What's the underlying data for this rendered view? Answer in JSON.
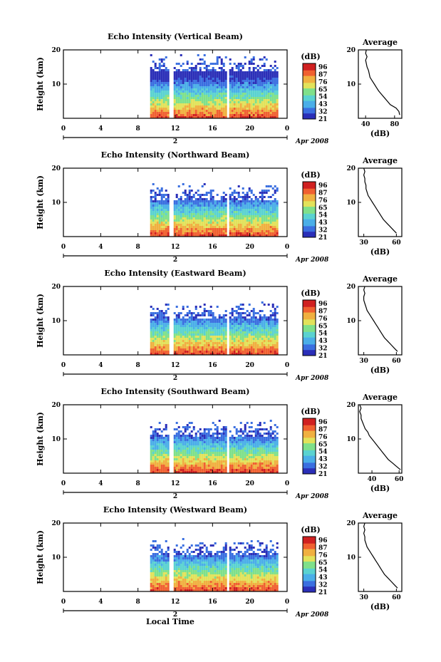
{
  "chart_data": [
    {
      "type": "heatmap",
      "title": "Echo Intensity (Vertical Beam)",
      "ylabel": "Height (km)",
      "yticks": [
        "20",
        "10"
      ],
      "ylim": [
        0,
        20
      ],
      "xticks": [
        "0",
        "4",
        "8",
        "12",
        "16",
        "20",
        "0"
      ],
      "xlim": [
        0,
        24
      ],
      "date_marker": "2",
      "date_label": "Apr 2008",
      "data_start_hour": 9.3,
      "gaps_hours": [
        11.5,
        17.6
      ],
      "colorbar_unit": "(dB)",
      "colorbar_ticks": [
        "96",
        "87",
        "76",
        "65",
        "54",
        "43",
        "32",
        "21"
      ],
      "avg_profile": {
        "title": "Average",
        "xlabel": "(dB)",
        "xticks": [
          "40",
          "80"
        ],
        "xlim": [
          30,
          90
        ],
        "yticks": [
          "20",
          "10"
        ],
        "heights_km": [
          1,
          2,
          3,
          4,
          5,
          6,
          7,
          8,
          9,
          10,
          11,
          12,
          13,
          14,
          15,
          16,
          17,
          18,
          19,
          20
        ],
        "db": [
          87,
          86,
          82,
          74,
          70,
          66,
          62,
          58,
          55,
          52,
          49,
          46,
          45,
          44,
          42,
          41,
          40,
          42,
          40,
          41
        ]
      }
    },
    {
      "type": "heatmap",
      "title": "Echo Intensity (Northward Beam)",
      "ylabel": "Height (km)",
      "yticks": [
        "20",
        "10"
      ],
      "ylim": [
        0,
        20
      ],
      "xticks": [
        "0",
        "4",
        "8",
        "12",
        "16",
        "20",
        "0"
      ],
      "xlim": [
        0,
        24
      ],
      "date_marker": "2",
      "date_label": "Apr 2008",
      "data_start_hour": 9.3,
      "gaps_hours": [
        11.5,
        17.6
      ],
      "colorbar_unit": "(dB)",
      "colorbar_ticks": [
        "96",
        "87",
        "76",
        "65",
        "54",
        "43",
        "32",
        "21"
      ],
      "avg_profile": {
        "title": "Average",
        "xlabel": "(dB)",
        "xticks": [
          "30",
          "60"
        ],
        "xlim": [
          25,
          65
        ],
        "yticks": [
          "20",
          "10"
        ],
        "heights_km": [
          1,
          2,
          3,
          4,
          5,
          6,
          7,
          8,
          9,
          10,
          11,
          12,
          13,
          14,
          15,
          16,
          17,
          18,
          19,
          20
        ],
        "db": [
          60,
          57,
          54,
          51,
          48,
          46,
          44,
          42,
          40,
          38,
          36,
          34,
          33,
          32,
          32,
          31,
          31,
          30,
          31,
          30
        ]
      }
    },
    {
      "type": "heatmap",
      "title": "Echo Intensity (Eastward Beam)",
      "ylabel": "Height (km)",
      "yticks": [
        "20",
        "10"
      ],
      "ylim": [
        0,
        20
      ],
      "xticks": [
        "0",
        "4",
        "8",
        "12",
        "16",
        "20",
        "0"
      ],
      "xlim": [
        0,
        24
      ],
      "date_marker": "2",
      "date_label": "Apr 2008",
      "data_start_hour": 9.3,
      "gaps_hours": [
        11.5,
        17.6
      ],
      "colorbar_unit": "(dB)",
      "colorbar_ticks": [
        "96",
        "87",
        "76",
        "65",
        "54",
        "43",
        "32",
        "21"
      ],
      "avg_profile": {
        "title": "Average",
        "xlabel": "(dB)",
        "xticks": [
          "30",
          "60"
        ],
        "xlim": [
          25,
          65
        ],
        "yticks": [
          "20",
          "10"
        ],
        "heights_km": [
          1,
          2,
          3,
          4,
          5,
          6,
          7,
          8,
          9,
          10,
          11,
          12,
          13,
          14,
          15,
          16,
          17,
          18,
          19,
          20
        ],
        "db": [
          61,
          58,
          55,
          52,
          49,
          47,
          45,
          43,
          41,
          39,
          37,
          35,
          33,
          32,
          31,
          30,
          30,
          31,
          30,
          31
        ]
      }
    },
    {
      "type": "heatmap",
      "title": "Echo Intensity (Southward Beam)",
      "ylabel": "Height (km)",
      "yticks": [
        "20",
        "10"
      ],
      "ylim": [
        0,
        20
      ],
      "xticks": [
        "0",
        "4",
        "8",
        "12",
        "16",
        "20",
        "0"
      ],
      "xlim": [
        0,
        24
      ],
      "date_marker": "2",
      "date_label": "Apr 2008",
      "data_start_hour": 9.3,
      "gaps_hours": [
        11.5,
        17.6
      ],
      "colorbar_unit": "(dB)",
      "colorbar_ticks": [
        "96",
        "87",
        "76",
        "65",
        "54",
        "43",
        "32",
        "21"
      ],
      "avg_profile": {
        "title": "Average",
        "xlabel": "(dB)",
        "xticks": [
          "40",
          "60"
        ],
        "xlim": [
          30,
          62
        ],
        "yticks": [
          "20",
          "10"
        ],
        "heights_km": [
          1,
          2,
          3,
          4,
          5,
          6,
          7,
          8,
          9,
          10,
          11,
          12,
          13,
          14,
          15,
          16,
          17,
          18,
          19,
          20
        ],
        "db": [
          61,
          58,
          55,
          52,
          50,
          48,
          46,
          44,
          42,
          40,
          38,
          37,
          35,
          34,
          33,
          32,
          32,
          31,
          32,
          31
        ]
      }
    },
    {
      "type": "heatmap",
      "title": "Echo Intensity (Westward Beam)",
      "ylabel": "Height (km)",
      "yticks": [
        "20",
        "10"
      ],
      "ylim": [
        0,
        20
      ],
      "xticks": [
        "0",
        "4",
        "8",
        "12",
        "16",
        "20",
        "0"
      ],
      "xlim": [
        0,
        24
      ],
      "date_marker": "2",
      "date_label": "Apr 2008",
      "data_start_hour": 9.3,
      "gaps_hours": [
        11.5,
        17.6
      ],
      "colorbar_unit": "(dB)",
      "colorbar_ticks": [
        "96",
        "87",
        "76",
        "65",
        "54",
        "43",
        "32",
        "21"
      ],
      "avg_profile": {
        "title": "Average",
        "xlabel": "(dB)",
        "xticks": [
          "30",
          "60"
        ],
        "xlim": [
          25,
          65
        ],
        "yticks": [
          "20",
          "10"
        ],
        "heights_km": [
          1,
          2,
          3,
          4,
          5,
          6,
          7,
          8,
          9,
          10,
          11,
          12,
          13,
          14,
          15,
          16,
          17,
          18,
          19,
          20
        ],
        "db": [
          61,
          58,
          55,
          52,
          49,
          47,
          45,
          43,
          41,
          39,
          37,
          35,
          33,
          32,
          31,
          31,
          30,
          31,
          30,
          31
        ]
      }
    }
  ],
  "footer": {
    "xlabel": "Local Time"
  },
  "colors": {
    "colormap": [
      "#2b2fb8",
      "#3a6fe0",
      "#4aaee8",
      "#5ad2d0",
      "#7fe08a",
      "#e2e25a",
      "#f0b040",
      "#f06030",
      "#d02020"
    ]
  }
}
